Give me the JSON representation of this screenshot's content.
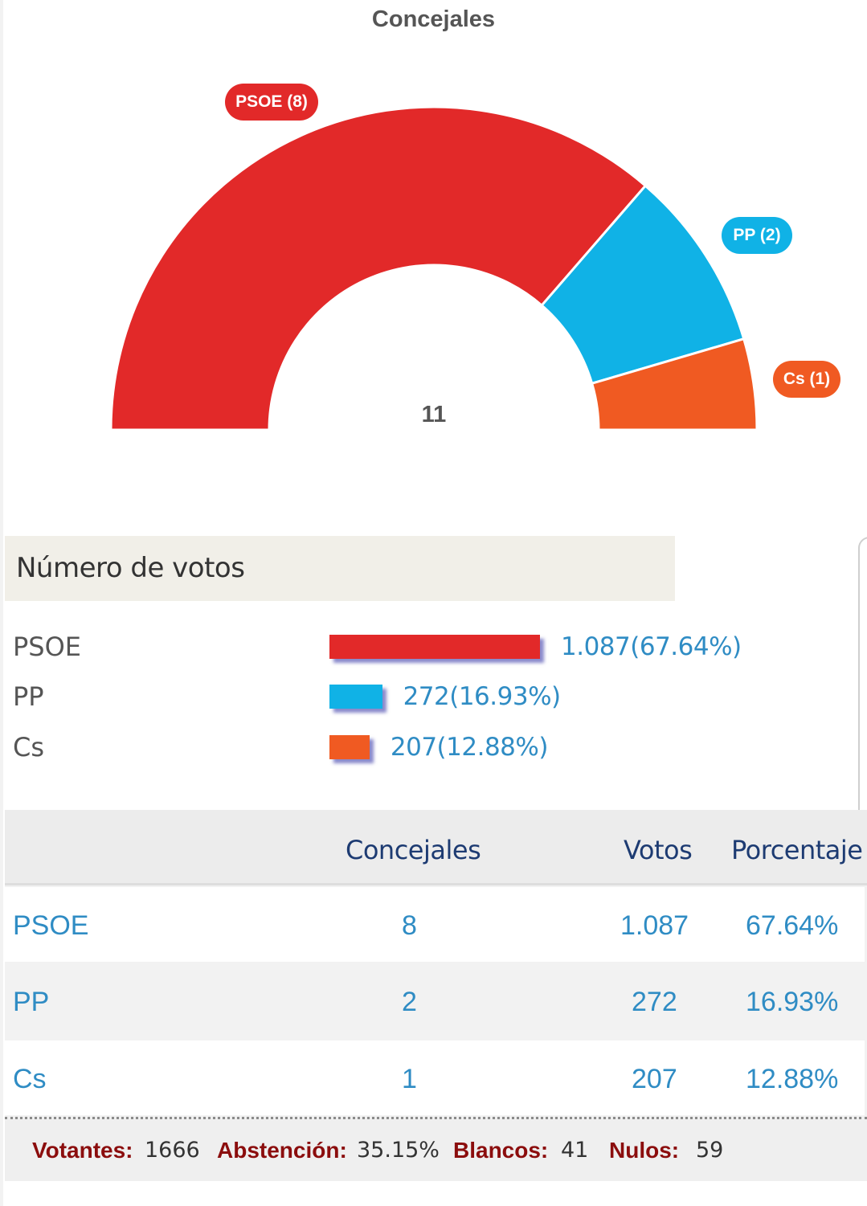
{
  "chart_data": [
    {
      "type": "pie",
      "variant": "hemicycle",
      "title": "Concejales",
      "total_label": "11",
      "categories": [
        "PSOE",
        "PP",
        "Cs"
      ],
      "values": [
        8,
        2,
        1
      ],
      "labels": [
        "PSOE (8)",
        "PP (2)",
        "Cs (1)"
      ],
      "colors": [
        "#e22929",
        "#10b2e6",
        "#f05a22"
      ]
    },
    {
      "type": "bar",
      "orientation": "horizontal",
      "title": "Número de votos",
      "categories": [
        "PSOE",
        "PP",
        "Cs"
      ],
      "values": [
        1087,
        272,
        207
      ],
      "percentages": [
        67.64,
        16.93,
        12.88
      ],
      "value_labels": [
        "1.087(67.64%)",
        "272(16.93%)",
        "207(12.88%)"
      ],
      "colors": [
        "#e22929",
        "#10b2e6",
        "#f05a22"
      ]
    },
    {
      "type": "table",
      "columns": [
        "",
        "Concejales",
        "Votos",
        "Porcentaje"
      ],
      "rows": [
        {
          "party": "PSOE",
          "seats": "8",
          "votes": "1.087",
          "pct": "67.64%"
        },
        {
          "party": "PP",
          "seats": "2",
          "votes": "272",
          "pct": "16.93%"
        },
        {
          "party": "Cs",
          "seats": "1",
          "votes": "207",
          "pct": "12.88%"
        }
      ]
    }
  ],
  "summary": {
    "votantes_label": "Votantes:",
    "votantes": "1666",
    "abstencion_label": "Abstención:",
    "abstencion": "35.15%",
    "blancos_label": "Blancos:",
    "blancos": "41",
    "nulos_label": "Nulos:",
    "nulos": "59"
  }
}
